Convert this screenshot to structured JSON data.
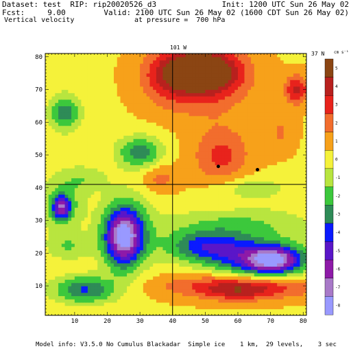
{
  "header": {
    "dataset_line": "Dataset: test  RIP: rip20020526_d3",
    "init_line": "Init: 1200 UTC Sun 26 May 02",
    "fcst_line": "Fcst:     9.00",
    "valid_line": "Valid: 2100 UTC Sun 26 May 02 (1600 CDT Sun 26 May 02)",
    "field_line": "Vertical velocity",
    "pressure_line": "at pressure =  700 hPa"
  },
  "footer": {
    "model_info": "Model info: V3.5.0 No Cumulus Blackadar  Simple ice    1 km,  29 levels,    3 sec"
  },
  "chart_data": {
    "type": "heatmap",
    "title": "Vertical velocity",
    "xlim": [
      1,
      81
    ],
    "ylim": [
      1,
      81
    ],
    "x_ticks": [
      10,
      20,
      30,
      40,
      50,
      60,
      70,
      80
    ],
    "y_ticks": [
      10,
      20,
      30,
      40,
      50,
      60,
      70,
      80
    ],
    "cross_lines": {
      "vertical_x": 40,
      "horizontal_y": 41
    },
    "cross_labels": {
      "top": "101 W",
      "right": "37 N"
    },
    "units": "cm s⁻¹",
    "colorbar": {
      "levels": [
        "5",
        "4",
        "3",
        "2",
        "1",
        "0",
        "-1",
        "-2",
        "-3",
        "-4",
        "-5",
        "-6",
        "-7",
        "-8"
      ],
      "colors": [
        "#8b4513",
        "#b8211e",
        "#e8231c",
        "#f26d2d",
        "#f7a11a",
        "#f5f23a",
        "#b8e53f",
        "#3cc83c",
        "#2e8b57",
        "#0a1aff",
        "#5a16c8",
        "#8e1aa8",
        "#a879c8",
        "#9999ff"
      ]
    },
    "markers": [
      {
        "x": 54,
        "y": 46.5
      },
      {
        "x": 66,
        "y": 45.5
      }
    ],
    "features": [
      {
        "x": 48,
        "y": 76,
        "sx": 8,
        "sy": 4,
        "v": 5
      },
      {
        "x": 50,
        "y": 73,
        "sx": 9,
        "sy": 7,
        "v": 3
      },
      {
        "x": 38,
        "y": 73,
        "sx": 6,
        "sy": 6,
        "v": 1.5
      },
      {
        "x": 78,
        "y": 70,
        "sx": 2.5,
        "sy": 3,
        "v": 3.5
      },
      {
        "x": 55,
        "y": 50,
        "sx": 6,
        "sy": 6,
        "v": 2.4
      },
      {
        "x": 73,
        "y": 57,
        "sx": 3,
        "sy": 4,
        "v": 1.2
      },
      {
        "x": 7,
        "y": 63,
        "sx": 3.5,
        "sy": 4,
        "v": -3.5
      },
      {
        "x": 30,
        "y": 51,
        "sx": 5,
        "sy": 3.5,
        "v": -3.5
      },
      {
        "x": 13,
        "y": 43,
        "sx": 5,
        "sy": 3,
        "v": -1.5
      },
      {
        "x": 6,
        "y": 34,
        "sx": 2,
        "sy": 2.5,
        "v": -5
      },
      {
        "x": 6,
        "y": 35,
        "sx": 5,
        "sy": 6,
        "v": -2.2
      },
      {
        "x": 25,
        "y": 25,
        "sx": 4,
        "sy": 6,
        "v": -7
      },
      {
        "x": 26,
        "y": 27,
        "sx": 6,
        "sy": 9,
        "v": -2
      },
      {
        "x": 50,
        "y": 22,
        "sx": 9,
        "sy": 3.5,
        "v": -4
      },
      {
        "x": 68,
        "y": 18,
        "sx": 10,
        "sy": 4,
        "v": -5.5
      },
      {
        "x": 71,
        "y": 18,
        "sx": 5,
        "sy": 2.5,
        "v": -4
      },
      {
        "x": 13,
        "y": 9,
        "sx": 7,
        "sy": 3,
        "v": -4
      },
      {
        "x": 8,
        "y": 22,
        "sx": 5,
        "sy": 3,
        "v": -1.8
      },
      {
        "x": 60,
        "y": 29,
        "sx": 16,
        "sy": 4,
        "v": -2
      },
      {
        "x": 62,
        "y": 10,
        "sx": 16,
        "sy": 2.5,
        "v": 3.5
      },
      {
        "x": 60,
        "y": 8,
        "sx": 7,
        "sy": 2,
        "v": 1.5
      },
      {
        "x": 64,
        "y": 40,
        "sx": 8,
        "sy": 2.5,
        "v": -1.6
      },
      {
        "x": 36,
        "y": 43,
        "sx": 4,
        "sy": 3,
        "v": 1.6
      },
      {
        "x": 55,
        "y": 35,
        "sx": 3,
        "sy": 2,
        "v": 0.5
      }
    ]
  }
}
